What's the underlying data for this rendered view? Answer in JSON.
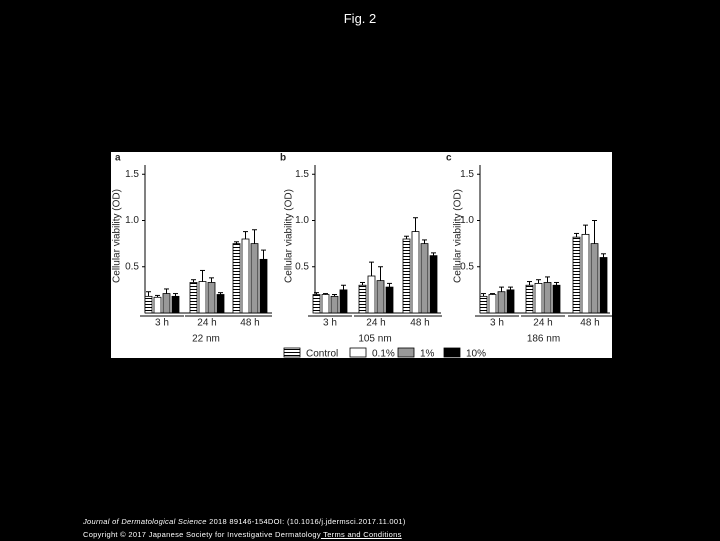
{
  "header": {
    "title": "Fig. 2"
  },
  "chart_data": [
    {
      "type": "bar",
      "panel": "a",
      "ylabel": "Cellular viability (OD)",
      "xlabel": "22 nm",
      "categories": [
        "3 h",
        "24 h",
        "48 h"
      ],
      "ylim": [
        0,
        1.6
      ],
      "yticks": [
        0.5,
        {
          "value": 1,
          "label": "1.0"
        },
        1.5
      ],
      "series": [
        {
          "name": "Control",
          "color": "#ffffff",
          "pattern": "horizontal-stripes",
          "values": [
            0.18,
            0.33,
            0.75
          ],
          "errors": [
            0.05,
            0.03,
            0.02
          ]
        },
        {
          "name": "0.1%",
          "color": "#ffffff",
          "values": [
            0.17,
            0.34,
            0.8
          ],
          "errors": [
            0.02,
            0.12,
            0.08
          ]
        },
        {
          "name": "1%",
          "color": "#999999",
          "values": [
            0.21,
            0.33,
            0.75
          ],
          "errors": [
            0.05,
            0.05,
            0.15
          ]
        },
        {
          "name": "10%",
          "color": "#000000",
          "values": [
            0.18,
            0.2,
            0.58
          ],
          "errors": [
            0.03,
            0.02,
            0.1
          ]
        }
      ]
    },
    {
      "type": "bar",
      "panel": "b",
      "ylabel": "Cellular viability (OD)",
      "xlabel": "105 nm",
      "categories": [
        "3 h",
        "24 h",
        "48 h"
      ],
      "ylim": [
        0,
        1.6
      ],
      "yticks": [
        0.5,
        {
          "value": 1,
          "label": "1.0"
        },
        1.5
      ],
      "series": [
        {
          "name": "Control",
          "color": "#ffffff",
          "pattern": "horizontal-stripes",
          "values": [
            0.2,
            0.3,
            0.8
          ],
          "errors": [
            0.02,
            0.03,
            0.03
          ]
        },
        {
          "name": "0.1%",
          "color": "#ffffff",
          "values": [
            0.2,
            0.4,
            0.88
          ],
          "errors": [
            0.01,
            0.15,
            0.15
          ]
        },
        {
          "name": "1%",
          "color": "#999999",
          "values": [
            0.18,
            0.35,
            0.75
          ],
          "errors": [
            0.02,
            0.15,
            0.04
          ]
        },
        {
          "name": "10%",
          "color": "#000000",
          "values": [
            0.25,
            0.28,
            0.62
          ],
          "errors": [
            0.05,
            0.04,
            0.03
          ]
        }
      ]
    },
    {
      "type": "bar",
      "panel": "c",
      "ylabel": "Cellular viability (OD)",
      "xlabel": "186 nm",
      "categories": [
        "3 h",
        "24 h",
        "48 h"
      ],
      "ylim": [
        0,
        1.6
      ],
      "yticks": [
        0.5,
        {
          "value": 1,
          "label": "1.0"
        },
        1.5
      ],
      "series": [
        {
          "name": "Control",
          "color": "#ffffff",
          "pattern": "horizontal-stripes",
          "values": [
            0.18,
            0.3,
            0.82
          ],
          "errors": [
            0.03,
            0.04,
            0.04
          ]
        },
        {
          "name": "0.1%",
          "color": "#ffffff",
          "values": [
            0.2,
            0.32,
            0.85
          ],
          "errors": [
            0.01,
            0.04,
            0.1
          ]
        },
        {
          "name": "1%",
          "color": "#999999",
          "values": [
            0.23,
            0.33,
            0.75
          ],
          "errors": [
            0.05,
            0.06,
            0.25
          ]
        },
        {
          "name": "10%",
          "color": "#000000",
          "values": [
            0.25,
            0.3,
            0.6
          ],
          "errors": [
            0.03,
            0.03,
            0.04
          ]
        }
      ]
    }
  ],
  "footer": {
    "journal": "Journal of Dermatological Science",
    "citation": " 2018 89146-154DOI: (10.1016/j.jdermsci.2017.11.001)",
    "copyright": "Copyright © 2017 Japanese Society for Investigative Dermatology",
    "link": " Terms and Conditions"
  }
}
